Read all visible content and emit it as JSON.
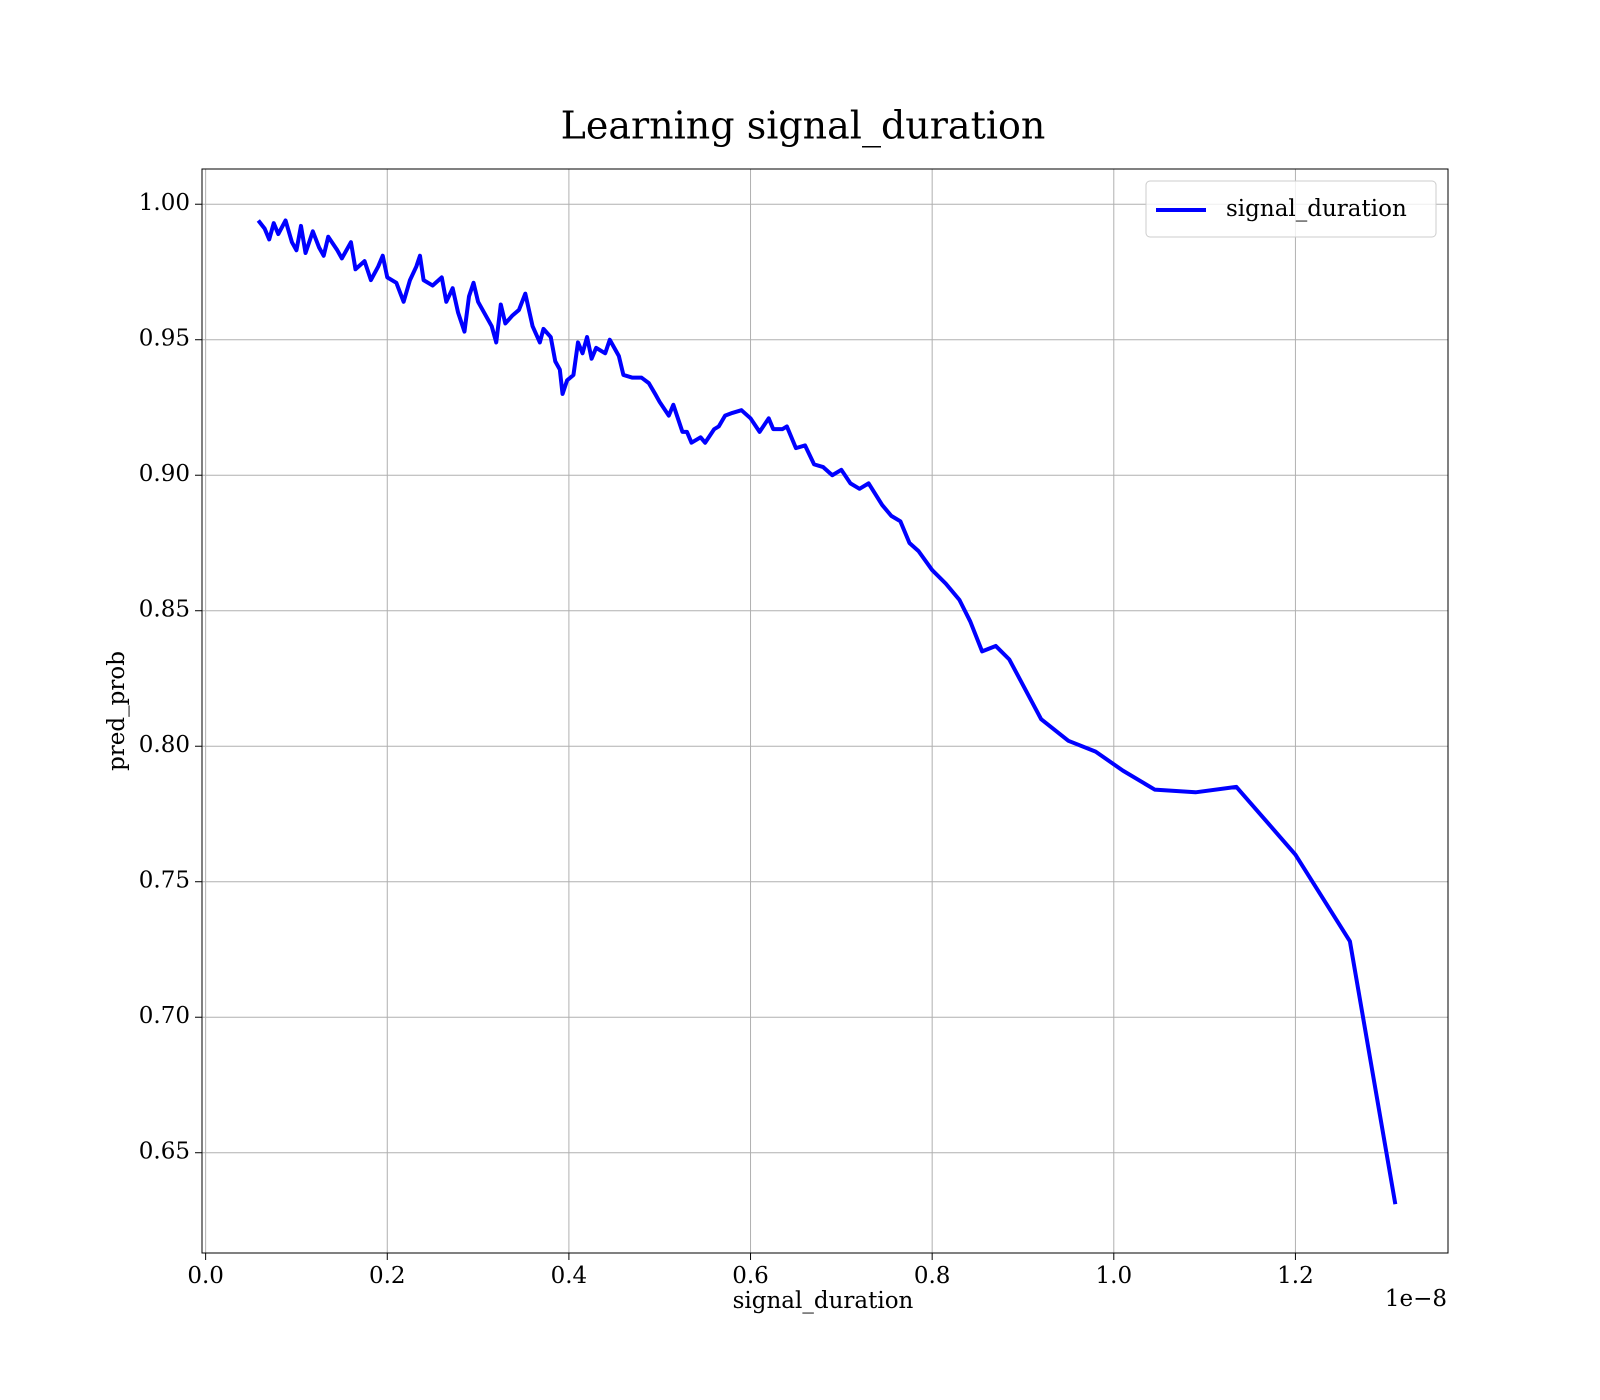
{
  "chart_data": {
    "type": "line",
    "title": "Learning signal_duration",
    "xlabel": "signal_duration",
    "ylabel": "pred_prob",
    "x_offset_label": "1e−8",
    "x": [
      0.058,
      0.065,
      0.07,
      0.075,
      0.08,
      0.088,
      0.095,
      0.1,
      0.105,
      0.11,
      0.118,
      0.125,
      0.13,
      0.135,
      0.145,
      0.15,
      0.16,
      0.165,
      0.175,
      0.182,
      0.19,
      0.195,
      0.2,
      0.21,
      0.218,
      0.225,
      0.232,
      0.236,
      0.24,
      0.25,
      0.26,
      0.265,
      0.272,
      0.278,
      0.285,
      0.29,
      0.295,
      0.3,
      0.31,
      0.315,
      0.32,
      0.325,
      0.33,
      0.338,
      0.345,
      0.352,
      0.36,
      0.368,
      0.372,
      0.38,
      0.385,
      0.39,
      0.393,
      0.398,
      0.405,
      0.41,
      0.415,
      0.42,
      0.425,
      0.43,
      0.44,
      0.445,
      0.45,
      0.455,
      0.46,
      0.47,
      0.48,
      0.488,
      0.495,
      0.5,
      0.51,
      0.515,
      0.52,
      0.525,
      0.53,
      0.535,
      0.545,
      0.55,
      0.56,
      0.565,
      0.572,
      0.58,
      0.59,
      0.6,
      0.61,
      0.62,
      0.625,
      0.635,
      0.64,
      0.65,
      0.66,
      0.67,
      0.68,
      0.69,
      0.7,
      0.71,
      0.72,
      0.73,
      0.745,
      0.755,
      0.765,
      0.775,
      0.785,
      0.8,
      0.815,
      0.83,
      0.842,
      0.855,
      0.87,
      0.885,
      0.92,
      0.95,
      0.98,
      1.01,
      1.045,
      1.09,
      1.135,
      1.2,
      1.26,
      1.31
    ],
    "series": [
      {
        "name": "signal_duration",
        "color": "#0000ff",
        "values": [
          0.994,
          0.991,
          0.987,
          0.993,
          0.989,
          0.994,
          0.986,
          0.983,
          0.992,
          0.982,
          0.99,
          0.984,
          0.981,
          0.988,
          0.983,
          0.98,
          0.986,
          0.976,
          0.979,
          0.972,
          0.977,
          0.981,
          0.973,
          0.971,
          0.964,
          0.972,
          0.977,
          0.981,
          0.972,
          0.97,
          0.973,
          0.964,
          0.969,
          0.96,
          0.953,
          0.966,
          0.971,
          0.964,
          0.958,
          0.955,
          0.949,
          0.963,
          0.956,
          0.959,
          0.961,
          0.967,
          0.955,
          0.949,
          0.954,
          0.951,
          0.942,
          0.939,
          0.93,
          0.935,
          0.937,
          0.949,
          0.945,
          0.951,
          0.943,
          0.947,
          0.945,
          0.95,
          0.947,
          0.944,
          0.937,
          0.936,
          0.936,
          0.934,
          0.93,
          0.927,
          0.922,
          0.926,
          0.921,
          0.916,
          0.916,
          0.912,
          0.914,
          0.912,
          0.917,
          0.918,
          0.922,
          0.923,
          0.924,
          0.921,
          0.916,
          0.921,
          0.917,
          0.917,
          0.918,
          0.91,
          0.911,
          0.904,
          0.903,
          0.9,
          0.902,
          0.897,
          0.895,
          0.897,
          0.889,
          0.885,
          0.883,
          0.875,
          0.872,
          0.865,
          0.86,
          0.854,
          0.846,
          0.835,
          0.837,
          0.832,
          0.81,
          0.802,
          0.798,
          0.791,
          0.784,
          0.783,
          0.785,
          0.76,
          0.728,
          0.631
        ]
      }
    ],
    "xlim": [
      -0.004,
      1.368
    ],
    "xticks": [
      {
        "value": 0,
        "label": "0.0"
      },
      0.2,
      0.4,
      0.6,
      0.8,
      {
        "value": 1,
        "label": "1.0"
      },
      1.2
    ],
    "ylim": [
      0.613,
      1.013
    ],
    "yticks": [
      {
        "value": 0.65,
        "label": "0.65"
      },
      {
        "value": 0.7,
        "label": "0.70"
      },
      0.75,
      {
        "value": 0.8,
        "label": "0.80"
      },
      0.85,
      {
        "value": 0.9,
        "label": "0.90"
      },
      0.95,
      {
        "value": 1,
        "label": "1.00"
      }
    ],
    "grid": true,
    "legend": "upper right"
  }
}
